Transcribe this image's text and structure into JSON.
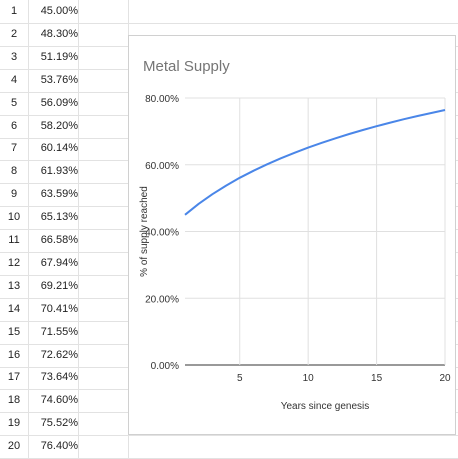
{
  "sheet": {
    "rows": [
      {
        "num": "1",
        "value": "45.00%"
      },
      {
        "num": "2",
        "value": "48.30%"
      },
      {
        "num": "3",
        "value": "51.19%"
      },
      {
        "num": "4",
        "value": "53.76%"
      },
      {
        "num": "5",
        "value": "56.09%"
      },
      {
        "num": "6",
        "value": "58.20%"
      },
      {
        "num": "7",
        "value": "60.14%"
      },
      {
        "num": "8",
        "value": "61.93%"
      },
      {
        "num": "9",
        "value": "63.59%"
      },
      {
        "num": "10",
        "value": "65.13%"
      },
      {
        "num": "11",
        "value": "66.58%"
      },
      {
        "num": "12",
        "value": "67.94%"
      },
      {
        "num": "13",
        "value": "69.21%"
      },
      {
        "num": "14",
        "value": "70.41%"
      },
      {
        "num": "15",
        "value": "71.55%"
      },
      {
        "num": "16",
        "value": "72.62%"
      },
      {
        "num": "17",
        "value": "73.64%"
      },
      {
        "num": "18",
        "value": "74.60%"
      },
      {
        "num": "19",
        "value": "75.52%"
      },
      {
        "num": "20",
        "value": "76.40%"
      }
    ]
  },
  "chart_data": {
    "type": "line",
    "title": "Metal Supply",
    "xlabel": "Years since genesis",
    "ylabel": "% of supply reached",
    "x": [
      1,
      2,
      3,
      4,
      5,
      6,
      7,
      8,
      9,
      10,
      11,
      12,
      13,
      14,
      15,
      16,
      17,
      18,
      19,
      20
    ],
    "series": [
      {
        "values": [
          45.0,
          48.3,
          51.19,
          53.76,
          56.09,
          58.2,
          60.14,
          61.93,
          63.59,
          65.13,
          66.58,
          67.94,
          69.21,
          70.41,
          71.55,
          72.62,
          73.64,
          74.6,
          75.52,
          76.4
        ],
        "color": "#4a86e8"
      }
    ],
    "xlim": [
      1,
      20
    ],
    "ylim": [
      0,
      80
    ],
    "xticks": [
      "5",
      "10",
      "15",
      "20"
    ],
    "yticks": [
      "0.00%",
      "20.00%",
      "40.00%",
      "60.00%",
      "80.00%"
    ],
    "grid": true,
    "legend": "none"
  }
}
